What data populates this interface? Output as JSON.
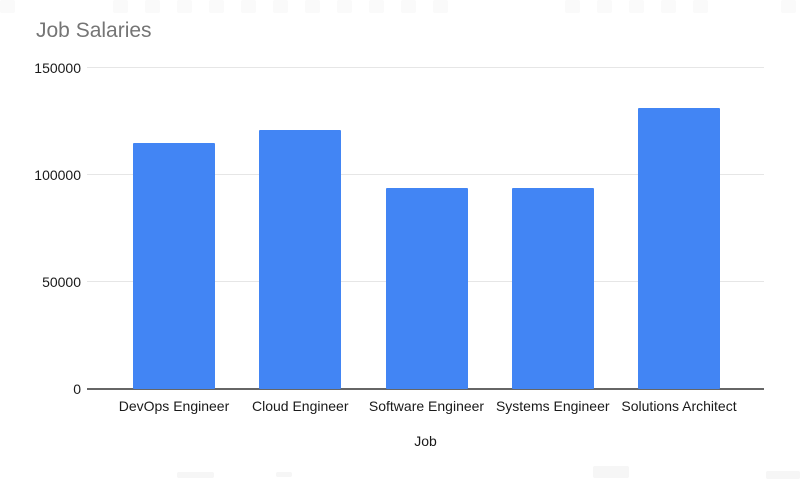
{
  "chart_data": {
    "type": "bar",
    "title": "Job Salaries",
    "categories": [
      "DevOps Engineer",
      "Cloud Engineer",
      "Software Engineer",
      "Systems Engineer",
      "Solutions Architect"
    ],
    "values": [
      115000,
      121000,
      94000,
      94000,
      131000
    ],
    "xlabel": "Job",
    "ylabel": "",
    "ylim": [
      0,
      150000
    ],
    "yticks": [
      0,
      50000,
      100000,
      150000
    ],
    "ytick_labels": [
      "0",
      "50000",
      "100000",
      "150000"
    ],
    "grid": true,
    "legend_position": "none",
    "bar_color": "#4285f4"
  },
  "colors": {
    "background": "#ffffff",
    "bar": "#4285f4",
    "title_text": "#757575",
    "axis_label_text": "#1a1a1a",
    "gridline": "#e6e6e6",
    "axis_baseline": "#666666"
  }
}
